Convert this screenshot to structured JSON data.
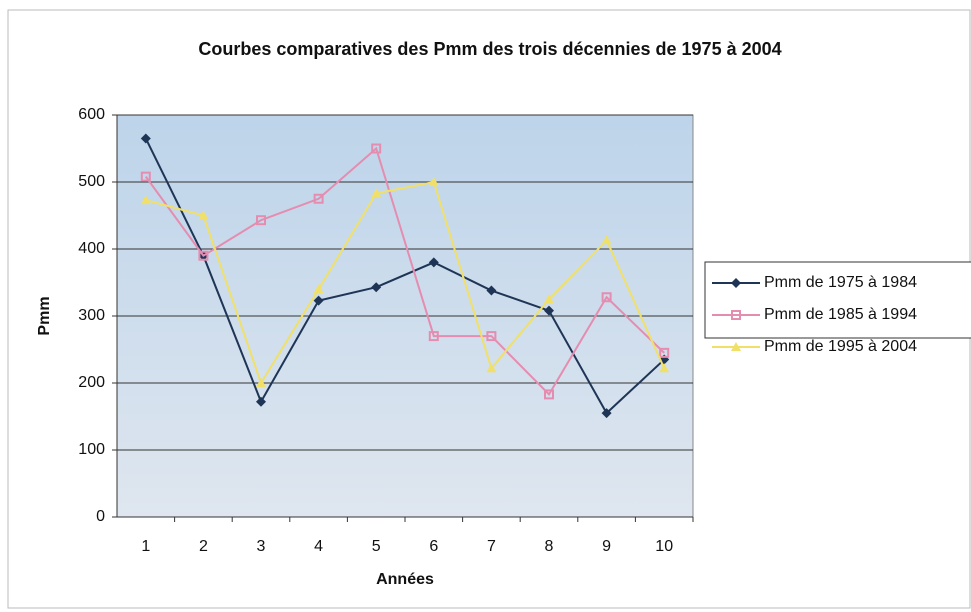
{
  "chart_data": {
    "type": "line",
    "title": "Courbes comparatives des Pmm des trois décennies de 1975 à 2004",
    "x_label": "Années",
    "y_label": "Pmm",
    "categories": [
      "1",
      "2",
      "3",
      "4",
      "5",
      "6",
      "7",
      "8",
      "9",
      "10"
    ],
    "series": [
      {
        "name": "Pmm de 1975 à 1984",
        "color": "#1f3556",
        "marker": "diamond",
        "values": [
          565,
          390,
          172,
          323,
          343,
          380,
          338,
          308,
          155,
          235
        ]
      },
      {
        "name": "Pmm de 1985 à 1994",
        "color": "#e58db0",
        "marker": "square",
        "values": [
          508,
          390,
          443,
          475,
          550,
          270,
          270,
          183,
          328,
          245
        ]
      },
      {
        "name": "Pmm de 1995 à 2004",
        "color": "#f0e06a",
        "marker": "triangle",
        "values": [
          473,
          450,
          200,
          340,
          483,
          500,
          222,
          325,
          413,
          222
        ]
      }
    ],
    "ylim": [
      0,
      600
    ],
    "yticks": [
      0,
      100,
      200,
      300,
      400,
      500,
      600
    ],
    "grid": true,
    "legend": "right"
  }
}
